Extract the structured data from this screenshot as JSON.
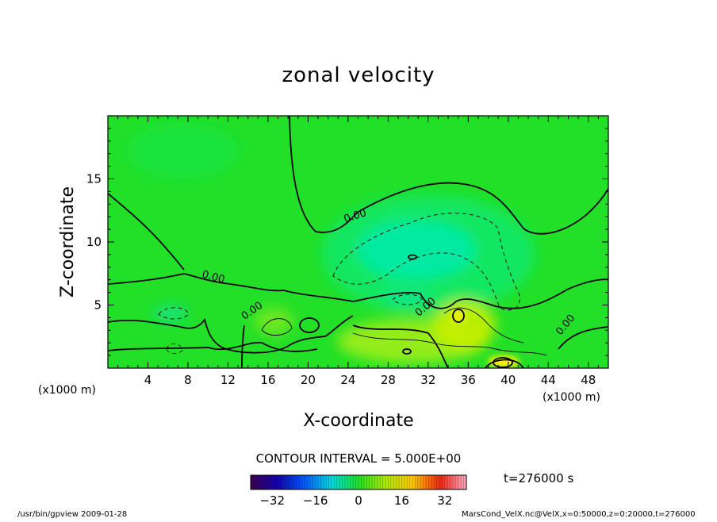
{
  "chart_data": {
    "type": "heatmap",
    "title": "zonal velocity",
    "xlabel": "X-coordinate",
    "ylabel": "Z-coordinate",
    "x_unit_left": "(x1000 m)",
    "x_unit_right": "(x1000 m)",
    "xlim": [
      0,
      50
    ],
    "ylim": [
      0,
      20
    ],
    "x_ticks": [
      4,
      8,
      12,
      16,
      20,
      24,
      28,
      32,
      36,
      40,
      44,
      48
    ],
    "y_ticks": [
      5,
      10,
      15
    ],
    "contour_interval_text": "CONTOUR INTERVAL = 5.000E+00",
    "contour_label": "0.00",
    "time_text": "t=276000 s",
    "colorbar": {
      "range": [
        -40,
        40
      ],
      "ticks": [
        -32,
        -16,
        0,
        16,
        32
      ]
    },
    "footer_left": "/usr/bin/gpview  2009-01-28",
    "footer_right": "MarsCond_VelX.nc@VelX,x=0:50000,z=0:20000,t=276000",
    "grid": false,
    "colors": {
      "base": "#22e028",
      "negative": "#00e8a0",
      "positive": "#b8f000",
      "strong_positive": "#ffee00"
    }
  }
}
